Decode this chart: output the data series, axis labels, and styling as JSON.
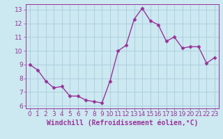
{
  "x": [
    0,
    1,
    2,
    3,
    4,
    5,
    6,
    7,
    8,
    9,
    10,
    11,
    12,
    13,
    14,
    15,
    16,
    17,
    18,
    19,
    20,
    21,
    22,
    23
  ],
  "y": [
    9.0,
    8.6,
    7.8,
    7.3,
    7.4,
    6.7,
    6.7,
    6.4,
    6.3,
    6.2,
    7.8,
    10.0,
    10.4,
    12.3,
    13.1,
    12.2,
    11.9,
    10.7,
    11.0,
    10.2,
    10.3,
    10.3,
    9.1,
    9.5
  ],
  "line_color": "#993399",
  "marker": "D",
  "markersize": 2.5,
  "linewidth": 1.0,
  "bg_color": "#cce8f0",
  "grid_color": "#aaccdd",
  "xlabel": "Windchill (Refroidissement éolien,°C)",
  "xlabel_color": "#993399",
  "tick_color": "#993399",
  "ylim": [
    5.8,
    13.4
  ],
  "xlim": [
    -0.5,
    23.5
  ],
  "yticks": [
    6,
    7,
    8,
    9,
    10,
    11,
    12,
    13
  ],
  "xticks": [
    0,
    1,
    2,
    3,
    4,
    5,
    6,
    7,
    8,
    9,
    10,
    11,
    12,
    13,
    14,
    15,
    16,
    17,
    18,
    19,
    20,
    21,
    22,
    23
  ],
  "xlabel_fontsize": 7.0,
  "tick_fontsize": 6.5,
  "axis_bg": "#cce8f0",
  "spine_color": "#993399"
}
